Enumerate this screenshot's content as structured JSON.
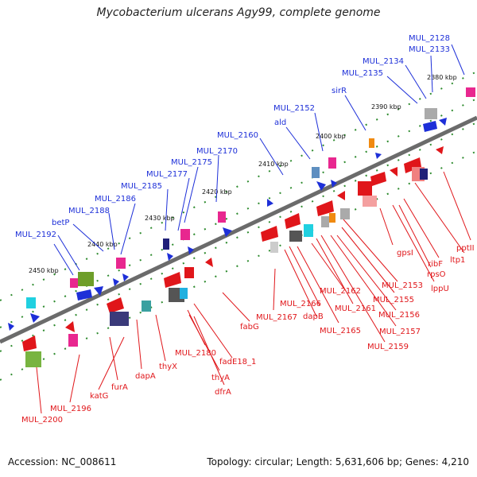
{
  "title": "Mycobacterium ulcerans Agy99, complete genome",
  "accession_text": "Accession: NC_008611",
  "summary_text": "Topology: circular; Length: 5,631,606 bp; Genes: 4,210",
  "colors": {
    "forward": "#1d2fd8",
    "reverse": "#e0161a",
    "backbone": "#6b6b6b",
    "tick": "#2e8b2e"
  },
  "scale": {
    "ticks": [
      "2380 kbp",
      "2390 kbp",
      "2400 kbp",
      "2410 kbp",
      "2420 kbp",
      "2430 kbp",
      "2440 kbp",
      "2450 kbp"
    ]
  },
  "forward_genes": [
    "MUL_2128",
    "MUL_2133",
    "MUL_2134",
    "MUL_2135",
    "sirR",
    "MUL_2152",
    "ald",
    "MUL_2160",
    "MUL_2170",
    "MUL_2175",
    "MUL_2177",
    "MUL_2185",
    "MUL_2186",
    "MUL_2188",
    "betP",
    "MUL_2192"
  ],
  "reverse_genes": [
    "pptII",
    "ltp1",
    "ribF",
    "rpsO",
    "lppU",
    "gpsI",
    "MUL_2153",
    "MUL_2155",
    "MUL_2156",
    "MUL_2157",
    "MUL_2159",
    "MUL_2161",
    "MUL_2162",
    "MUL_2165",
    "MUL_2166",
    "dapB",
    "MUL_2167",
    "fabG",
    "fadE18_1",
    "MUL_2180",
    "thyA",
    "dfrA",
    "thyX",
    "dapA",
    "furA",
    "katG",
    "MUL_2196",
    "MUL_2200"
  ]
}
